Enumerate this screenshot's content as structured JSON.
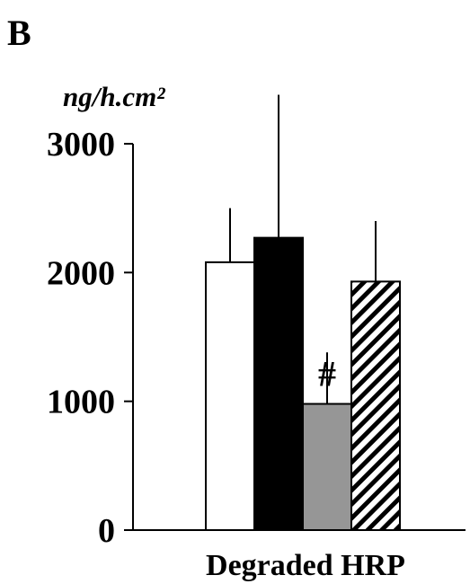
{
  "panel_label": "B",
  "chart_data": {
    "type": "bar",
    "title": "",
    "ylabel": "ng/h.cm²",
    "xlabel": "",
    "ylim": [
      0,
      3000
    ],
    "yticks": [
      0,
      1000,
      2000,
      3000
    ],
    "categories": [
      "Degraded HRP"
    ],
    "grid": false,
    "legend": "none",
    "bars": [
      {
        "value": 2080,
        "error": 420,
        "fill": "white",
        "annotation": ""
      },
      {
        "value": 2270,
        "error": 1110,
        "fill": "black",
        "annotation": ""
      },
      {
        "value": 980,
        "error": 400,
        "fill": "gray",
        "annotation": "#"
      },
      {
        "value": 1930,
        "error": 470,
        "fill": "hatched",
        "annotation": ""
      }
    ]
  },
  "colors": {
    "white": "#ffffff",
    "black": "#000000",
    "gray": "#969696",
    "outline": "#000000"
  }
}
